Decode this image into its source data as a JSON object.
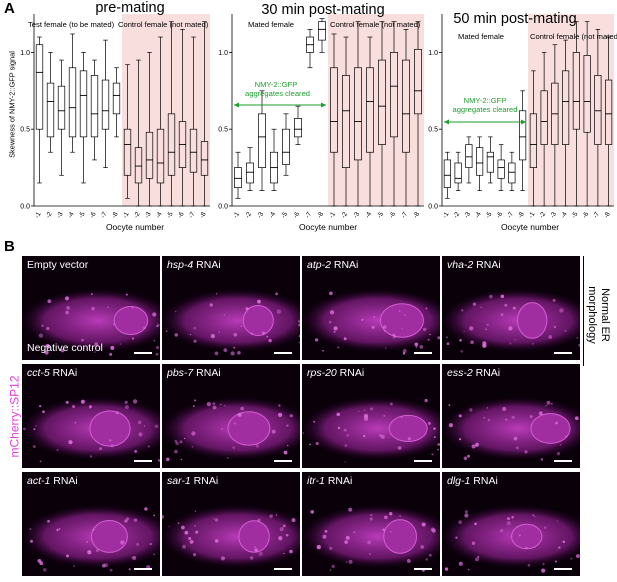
{
  "panel_a_letter": "A",
  "panel_b_letter": "B",
  "y_axis_label": "Skewness of NMY-2::GFP signal",
  "x_axis_label": "Oocyte number",
  "colors": {
    "control_shade": "#f9dede",
    "green_annotation": "#1e9e2e",
    "magenta": "#e040e0"
  },
  "plots": [
    {
      "title": "pre-mating",
      "left_label": "Test female (to be mated)",
      "right_label": "Control female (not mated)",
      "annotation": ""
    },
    {
      "title": "30 min post-mating",
      "left_label": "Mated female",
      "right_label": "Control female (not mated)",
      "annotation_line1": "NMY-2::GFP",
      "annotation_line2": "aggregates cleared"
    },
    {
      "title": "50 min post-mating",
      "left_label": "Mated female",
      "right_label": "Control female (not mated)",
      "annotation_line1": "NMY-2::GFP",
      "annotation_line2": "aggregates cleared"
    }
  ],
  "chart_data": [
    {
      "type": "box",
      "title": "pre-mating",
      "ylabel": "Skewness of NMY-2::GFP signal",
      "xlabel": "Oocyte number",
      "ylim": [
        0,
        1.25
      ],
      "yticks": [
        "0.0",
        "0.5",
        "1.0"
      ],
      "categories": [
        "-1",
        "-2",
        "-3",
        "-4",
        "-5",
        "-6",
        "-7",
        "-8",
        "-1",
        "-2",
        "-3",
        "-4",
        "-5",
        "-6",
        "-7",
        "-8"
      ],
      "series": [
        {
          "name": "Test female (to be mated)",
          "boxes": [
            {
              "min": 0.15,
              "q1": 0.5,
              "median": 0.87,
              "q3": 1.05,
              "max": 1.1
            },
            {
              "min": 0.35,
              "q1": 0.45,
              "median": 0.68,
              "q3": 0.8,
              "max": 1.0
            },
            {
              "min": 0.2,
              "q1": 0.5,
              "median": 0.62,
              "q3": 0.78,
              "max": 0.95
            },
            {
              "min": 0.35,
              "q1": 0.45,
              "median": 0.64,
              "q3": 0.9,
              "max": 1.12
            },
            {
              "min": 0.15,
              "q1": 0.45,
              "median": 0.72,
              "q3": 0.88,
              "max": 1.0
            },
            {
              "min": 0.3,
              "q1": 0.45,
              "median": 0.6,
              "q3": 0.85,
              "max": 0.95
            },
            {
              "min": 0.25,
              "q1": 0.5,
              "median": 0.62,
              "q3": 0.82,
              "max": 1.08
            },
            {
              "min": 0.45,
              "q1": 0.6,
              "median": 0.72,
              "q3": 0.8,
              "max": 0.9
            }
          ]
        },
        {
          "name": "Control female (not mated)",
          "boxes": [
            {
              "min": 0.05,
              "q1": 0.2,
              "median": 0.4,
              "q3": 0.5,
              "max": 0.92
            },
            {
              "min": 0.0,
              "q1": 0.15,
              "median": 0.26,
              "q3": 0.38,
              "max": 0.95
            },
            {
              "min": 0.0,
              "q1": 0.18,
              "median": 0.3,
              "q3": 0.48,
              "max": 1.0
            },
            {
              "min": 0.0,
              "q1": 0.15,
              "median": 0.28,
              "q3": 0.5,
              "max": 1.1
            },
            {
              "min": 0.0,
              "q1": 0.2,
              "median": 0.35,
              "q3": 0.6,
              "max": 1.2
            },
            {
              "min": 0.0,
              "q1": 0.25,
              "median": 0.4,
              "q3": 0.55,
              "max": 1.15
            },
            {
              "min": 0.0,
              "q1": 0.22,
              "median": 0.35,
              "q3": 0.5,
              "max": 1.1
            },
            {
              "min": 0.0,
              "q1": 0.2,
              "median": 0.3,
              "q3": 0.42,
              "max": 1.2
            }
          ]
        }
      ]
    },
    {
      "type": "box",
      "title": "30 min post-mating",
      "ylim": [
        0,
        1.25
      ],
      "categories": [
        "-1",
        "-2",
        "-3",
        "-4",
        "-5",
        "-6",
        "-7",
        "-8",
        "-1",
        "-2",
        "-3",
        "-4",
        "-5",
        "-6",
        "-7",
        "-8"
      ],
      "series": [
        {
          "name": "Mated female",
          "boxes": [
            {
              "min": 0.05,
              "q1": 0.12,
              "median": 0.18,
              "q3": 0.25,
              "max": 0.35
            },
            {
              "min": 0.1,
              "q1": 0.15,
              "median": 0.22,
              "q3": 0.28,
              "max": 0.38
            },
            {
              "min": 0.1,
              "q1": 0.25,
              "median": 0.45,
              "q3": 0.6,
              "max": 0.75
            },
            {
              "min": 0.1,
              "q1": 0.15,
              "median": 0.25,
              "q3": 0.35,
              "max": 0.5
            },
            {
              "min": 0.2,
              "q1": 0.27,
              "median": 0.35,
              "q3": 0.5,
              "max": 0.6
            },
            {
              "min": 0.4,
              "q1": 0.45,
              "median": 0.5,
              "q3": 0.57,
              "max": 0.65
            },
            {
              "min": 0.9,
              "q1": 1.0,
              "median": 1.05,
              "q3": 1.1,
              "max": 1.15
            },
            {
              "min": 1.0,
              "q1": 1.08,
              "median": 1.15,
              "q3": 1.2,
              "max": 1.22
            }
          ]
        },
        {
          "name": "Control female (not mated)",
          "boxes": [
            {
              "min": 0.0,
              "q1": 0.35,
              "median": 0.55,
              "q3": 0.9,
              "max": 1.12
            },
            {
              "min": 0.0,
              "q1": 0.25,
              "median": 0.62,
              "q3": 0.85,
              "max": 1.1
            },
            {
              "min": 0.0,
              "q1": 0.3,
              "median": 0.55,
              "q3": 0.9,
              "max": 1.2
            },
            {
              "min": 0.0,
              "q1": 0.35,
              "median": 0.68,
              "q3": 0.9,
              "max": 1.1
            },
            {
              "min": 0.0,
              "q1": 0.4,
              "median": 0.65,
              "q3": 0.95,
              "max": 1.2
            },
            {
              "min": 0.0,
              "q1": 0.45,
              "median": 0.78,
              "q3": 1.0,
              "max": 1.2
            },
            {
              "min": 0.0,
              "q1": 0.35,
              "median": 0.6,
              "q3": 0.95,
              "max": 1.15
            },
            {
              "min": 0.0,
              "q1": 0.6,
              "median": 0.75,
              "q3": 1.02,
              "max": 1.2
            }
          ]
        }
      ]
    },
    {
      "type": "box",
      "title": "50 min post-mating",
      "ylim": [
        0,
        1.25
      ],
      "categories": [
        "-1",
        "-2",
        "-3",
        "-4",
        "-5",
        "-6",
        "-7",
        "-8",
        "-1",
        "-2",
        "-3",
        "-4",
        "-5",
        "-6",
        "-7",
        "-8"
      ],
      "series": [
        {
          "name": "Mated female",
          "boxes": [
            {
              "min": 0.05,
              "q1": 0.12,
              "median": 0.2,
              "q3": 0.3,
              "max": 0.35
            },
            {
              "min": 0.1,
              "q1": 0.15,
              "median": 0.18,
              "q3": 0.28,
              "max": 0.35
            },
            {
              "min": 0.15,
              "q1": 0.25,
              "median": 0.32,
              "q3": 0.4,
              "max": 0.45
            },
            {
              "min": 0.1,
              "q1": 0.2,
              "median": 0.28,
              "q3": 0.38,
              "max": 0.45
            },
            {
              "min": 0.15,
              "q1": 0.22,
              "median": 0.32,
              "q3": 0.35,
              "max": 0.45
            },
            {
              "min": 0.1,
              "q1": 0.18,
              "median": 0.25,
              "q3": 0.3,
              "max": 0.4
            },
            {
              "min": 0.1,
              "q1": 0.15,
              "median": 0.22,
              "q3": 0.28,
              "max": 0.35
            },
            {
              "min": 0.1,
              "q1": 0.3,
              "median": 0.45,
              "q3": 0.62,
              "max": 0.75
            }
          ]
        },
        {
          "name": "Control female (not mated)",
          "boxes": [
            {
              "min": 0.0,
              "q1": 0.25,
              "median": 0.4,
              "q3": 0.6,
              "max": 0.88
            },
            {
              "min": 0.0,
              "q1": 0.4,
              "median": 0.55,
              "q3": 0.75,
              "max": 1.0
            },
            {
              "min": 0.0,
              "q1": 0.4,
              "median": 0.6,
              "q3": 0.8,
              "max": 1.05
            },
            {
              "min": 0.0,
              "q1": 0.4,
              "median": 0.68,
              "q3": 0.88,
              "max": 1.08
            },
            {
              "min": 0.0,
              "q1": 0.5,
              "median": 0.68,
              "q3": 1.0,
              "max": 1.2
            },
            {
              "min": 0.0,
              "q1": 0.48,
              "median": 0.68,
              "q3": 0.98,
              "max": 1.2
            },
            {
              "min": 0.0,
              "q1": 0.4,
              "median": 0.62,
              "q3": 0.85,
              "max": 1.15
            },
            {
              "min": 0.0,
              "q1": 0.4,
              "median": 0.6,
              "q3": 0.82,
              "max": 1.1
            }
          ]
        }
      ]
    }
  ],
  "panel_b": {
    "side_label_top_line1": "Normal ER",
    "side_label_top_line2": "morphology",
    "side_label_left": "mCherry::SP12",
    "tiles": [
      {
        "gene": "Empty vector",
        "rnai": "",
        "extra": "Negative control"
      },
      {
        "gene": "hsp-4",
        "rnai": " RNAi",
        "extra": ""
      },
      {
        "gene": "atp-2",
        "rnai": " RNAi",
        "extra": ""
      },
      {
        "gene": "vha-2",
        "rnai": " RNAi",
        "extra": ""
      },
      {
        "gene": "cct-5",
        "rnai": " RNAi",
        "extra": ""
      },
      {
        "gene": "pbs-7",
        "rnai": " RNAi",
        "extra": ""
      },
      {
        "gene": "rps-20",
        "rnai": " RNAi",
        "extra": ""
      },
      {
        "gene": "ess-2",
        "rnai": " RNAi",
        "extra": ""
      },
      {
        "gene": "act-1",
        "rnai": " RNAi",
        "extra": ""
      },
      {
        "gene": "sar-1",
        "rnai": " RNAi",
        "extra": ""
      },
      {
        "gene": "itr-1",
        "rnai": " RNAi",
        "extra": ""
      },
      {
        "gene": "dlg-1",
        "rnai": " RNAi",
        "extra": ""
      }
    ]
  }
}
